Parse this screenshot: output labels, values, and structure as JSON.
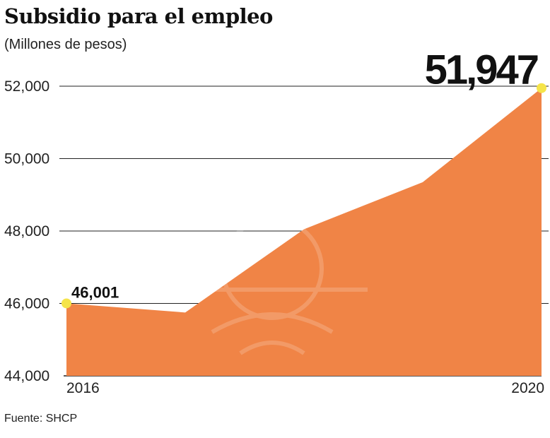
{
  "chart_data": {
    "type": "area",
    "title": "Subsidio para el empleo",
    "subtitle": "(Millones de pesos)",
    "source": "Fuente: SHCP",
    "x": [
      2016,
      2017,
      2018,
      2019,
      2020
    ],
    "x_tick_labels": [
      "2016",
      "2020"
    ],
    "y_tick_labels": [
      "44,000",
      "46,000",
      "48,000",
      "50,000",
      "52,000"
    ],
    "y_ticks": [
      44000,
      46000,
      48000,
      50000,
      52000
    ],
    "ylim": [
      44000,
      52000
    ],
    "series": [
      {
        "values": [
          46001,
          45750,
          48050,
          49350,
          51947
        ]
      }
    ],
    "annotations": [
      {
        "text": "46,001",
        "x": 2016,
        "y": 46001
      },
      {
        "text": "51,947",
        "x": 2020,
        "y": 51947
      }
    ],
    "grid": "horizontal",
    "colors": {
      "area": "#f08446",
      "marker": "#f5e44a",
      "grid": "#222222"
    }
  }
}
